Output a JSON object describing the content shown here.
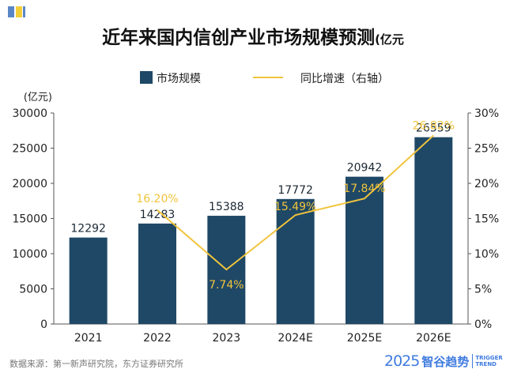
{
  "title": "近年来国内信创产业市场规模预测",
  "title_unit": "(亿元",
  "legend": {
    "bar_label": "市场规模",
    "line_label": "同比增速（右轴）"
  },
  "footer": {
    "source": "数据来源：第一新声研究院，东方证券研究所"
  },
  "brand": {
    "year": "2025",
    "name": "智谷趋势",
    "en_line1": "TRIGGER",
    "en_line2": "TREND"
  },
  "chart_data": {
    "type": "bar",
    "categories": [
      "2021",
      "2022",
      "2023",
      "2024E",
      "2025E",
      "2026E"
    ],
    "series": [
      {
        "name": "市场规模",
        "type": "bar",
        "axis": "left",
        "values": [
          12292,
          14283,
          15388,
          17772,
          20942,
          26559
        ],
        "labels": [
          "12292",
          "14283",
          "15388",
          "17772",
          "20942",
          "26559"
        ],
        "color": "#1f4866"
      },
      {
        "name": "同比增速（右轴）",
        "type": "line",
        "axis": "right",
        "points": [
          {
            "x": "2022",
            "y": 16.2,
            "label": "16.20%"
          },
          {
            "x": "2023",
            "y": 7.74,
            "label": "7.74%"
          },
          {
            "x": "2024E",
            "y": 15.49,
            "label": "15.49%"
          },
          {
            "x": "2025E",
            "y": 17.84,
            "label": "17.84%"
          },
          {
            "x": "2026E",
            "y": 26.82,
            "label": "26.82%"
          }
        ],
        "color": "#f1c43c"
      }
    ],
    "y_left": {
      "label": "(亿元)",
      "range": [
        0,
        30000
      ],
      "ticks": [
        "0",
        "5000",
        "10000",
        "15000",
        "20000",
        "25000",
        "30000"
      ]
    },
    "y_right": {
      "range": [
        0,
        30
      ],
      "ticks": [
        "0%",
        "5%",
        "10%",
        "15%",
        "20%",
        "25%",
        "30%"
      ]
    },
    "grid": false,
    "legend_position": "top-center"
  }
}
